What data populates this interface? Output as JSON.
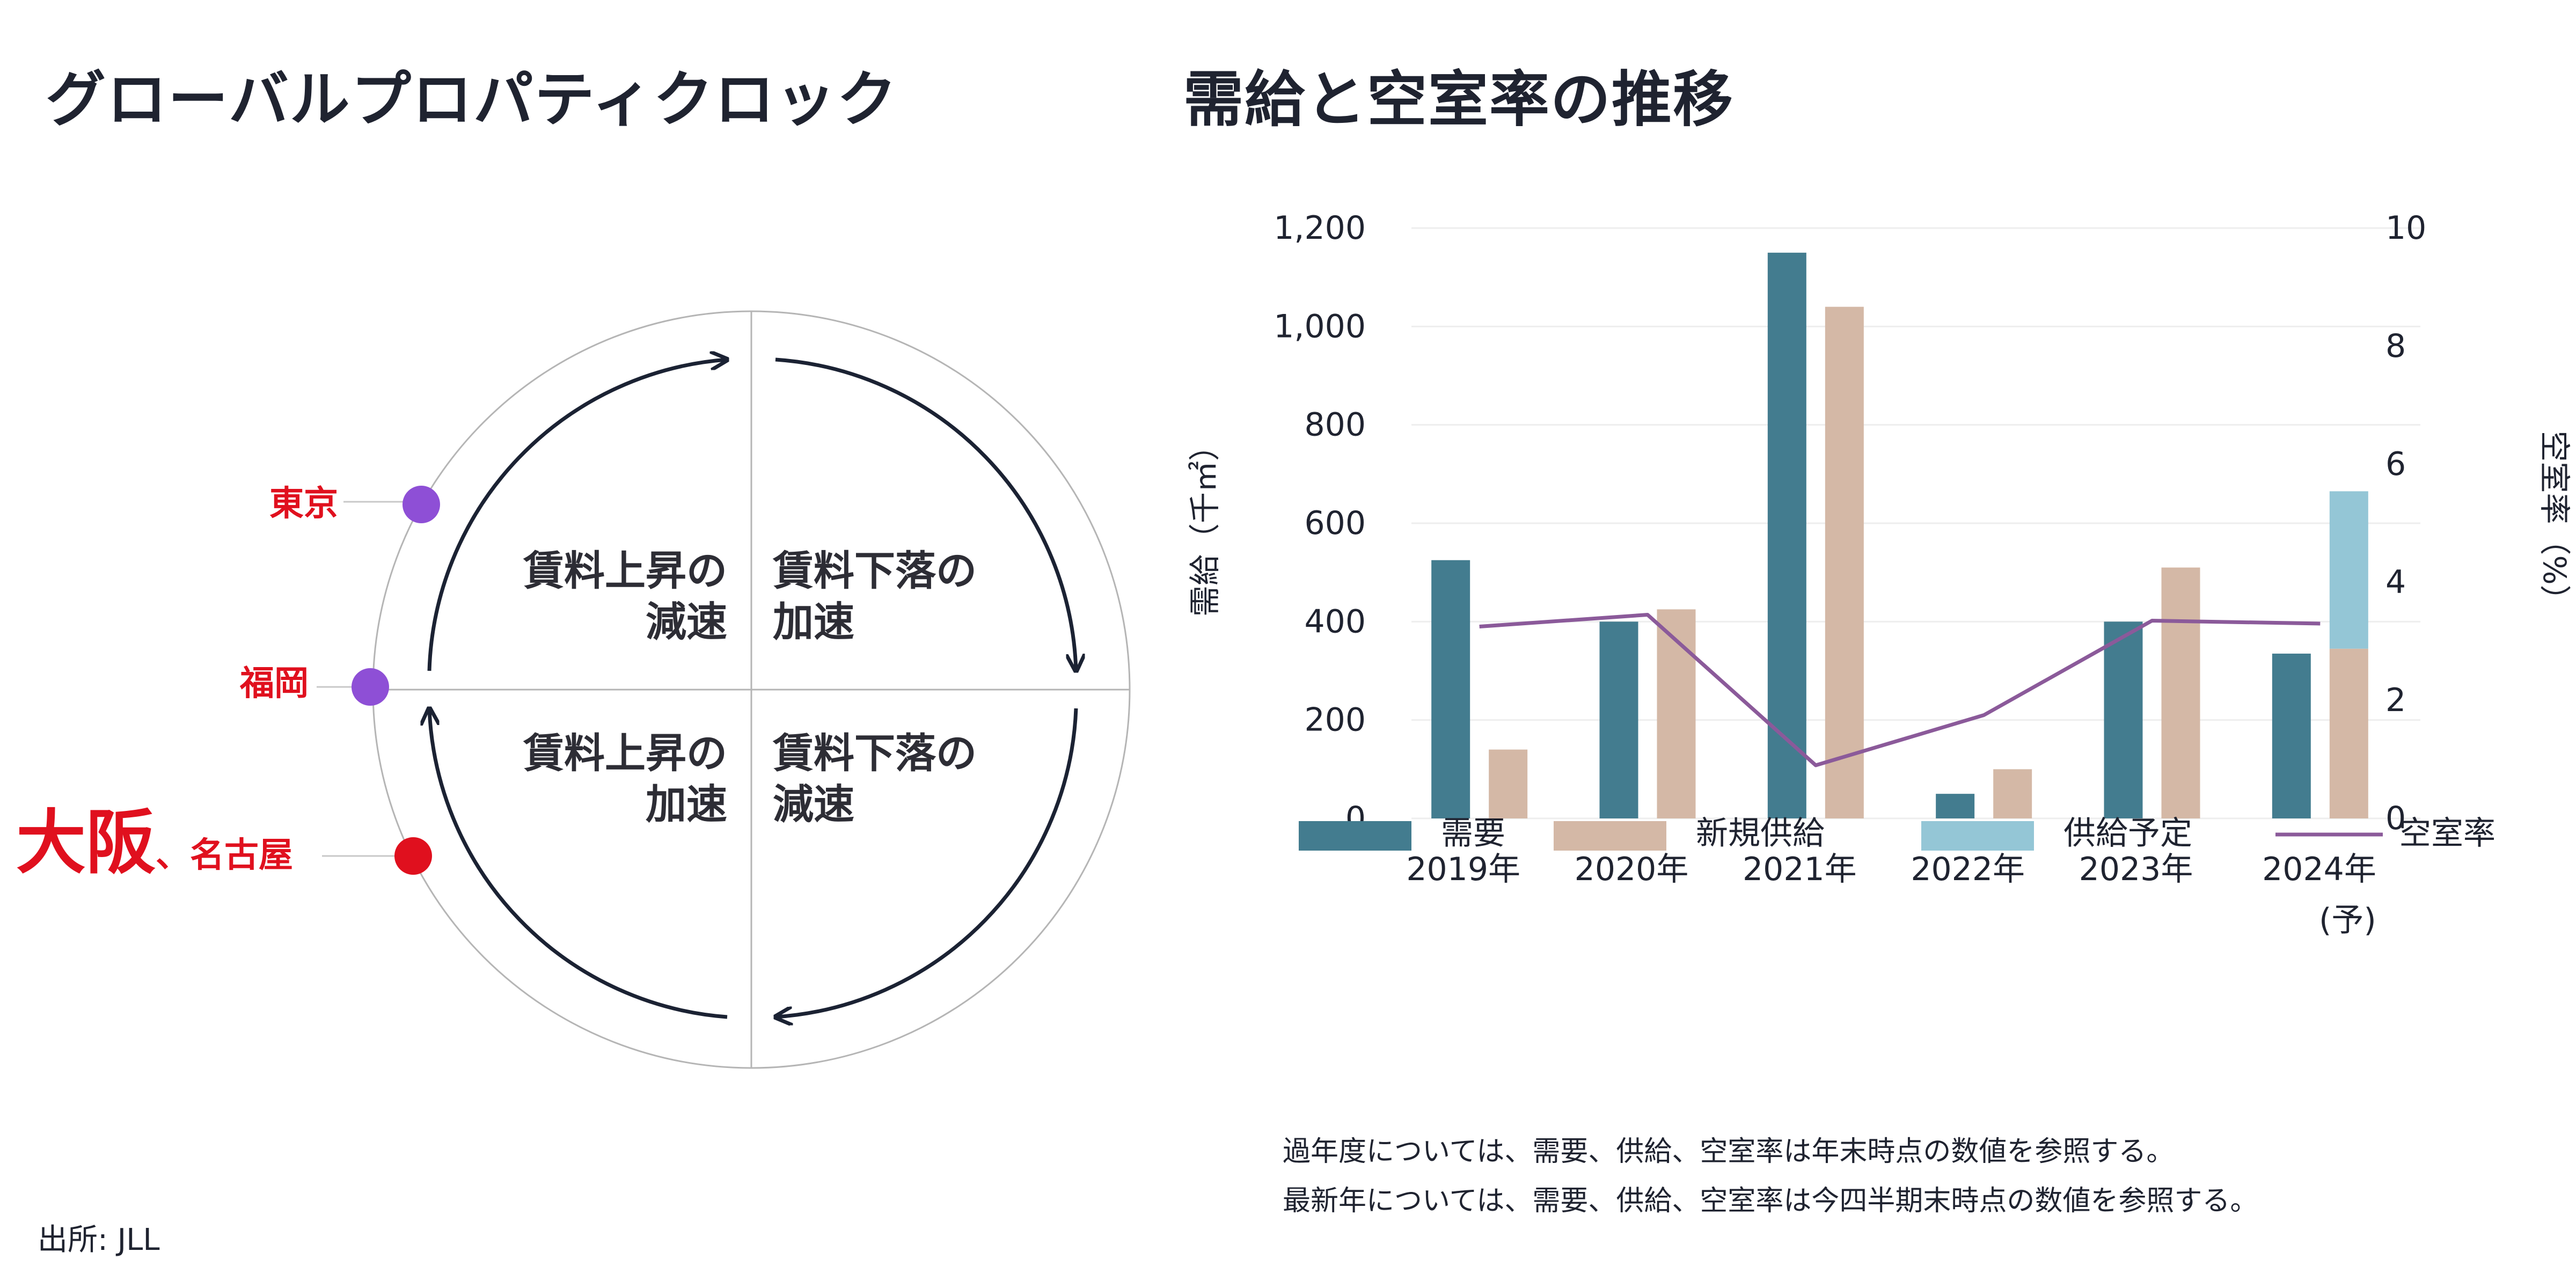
{
  "clock": {
    "title": "グローバルプロパティクロック",
    "quadrants": [
      {
        "line1": "賃料上昇の",
        "line2": "減速"
      },
      {
        "line1": "賃料下落の",
        "line2": "加速"
      },
      {
        "line1": "賃料上昇の",
        "line2": "加速"
      },
      {
        "line1": "賃料下落の",
        "line2": "減速"
      }
    ],
    "markers": [
      {
        "label": "東京",
        "color": "#8e4fd6"
      },
      {
        "label": "福岡",
        "color": "#8e4fd6"
      },
      {
        "label_big": "大阪",
        "label_small": "、名古屋",
        "color": "#e0101e"
      }
    ],
    "source": "出所: JLL"
  },
  "chart_title": "需給と空室率の推移",
  "chart_data": {
    "type": "bar",
    "categories": [
      "2019年",
      "2020年",
      "2021年",
      "2022年",
      "2023年",
      "2024年"
    ],
    "category_sublabels": [
      "",
      "",
      "",
      "",
      "",
      "(予)"
    ],
    "ylabel": "需給（千㎡）",
    "y2label": "空室率（%）",
    "ylim": [
      0,
      1200
    ],
    "y2lim": [
      0,
      10
    ],
    "yticks": [
      "0",
      "200",
      "400",
      "600",
      "800",
      "1,000",
      "1,200"
    ],
    "y2ticks": [
      "0",
      "2",
      "4",
      "6",
      "8",
      "10"
    ],
    "series": [
      {
        "name": "需要",
        "type": "bar",
        "color": "#437c8f",
        "values": [
          525,
          400,
          1150,
          50,
          400,
          335
        ]
      },
      {
        "name": "新規供給",
        "type": "bar",
        "color": "#d4b8a6",
        "values": [
          140,
          425,
          1040,
          100,
          510,
          345
        ]
      },
      {
        "name": "供給予定",
        "type": "bar",
        "color": "#94c6d6",
        "values": [
          0,
          0,
          0,
          0,
          0,
          320
        ]
      },
      {
        "name": "空室率",
        "type": "line",
        "axis": "right",
        "color": "#8b5a9a",
        "values": [
          3.25,
          3.45,
          0.9,
          1.75,
          3.35,
          3.3
        ]
      }
    ],
    "grid": true,
    "legend_position": "bottom"
  },
  "notes": [
    "過年度については、需要、供給、空室率は年末時点の数値を参照する。",
    "最新年については、需要、供給、空室率は今四半期末時点の数値を参照する。"
  ]
}
